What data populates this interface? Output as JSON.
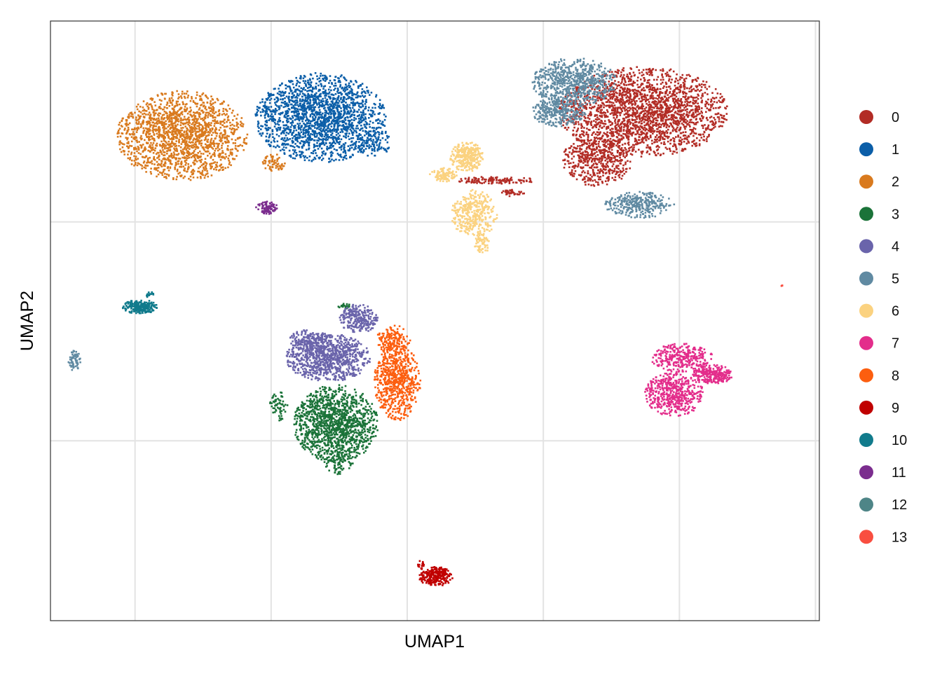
{
  "chart_data": {
    "type": "scatter",
    "title": "",
    "xlabel": "UMAP1",
    "ylabel": "UMAP2",
    "grid": true,
    "axis_tick_labels": false,
    "legend_position": "right",
    "xlim": [
      0,
      100
    ],
    "ylim": [
      0,
      100
    ],
    "x_gridlines": [
      11,
      28.7,
      46.4,
      64.1,
      81.8,
      99.5
    ],
    "y_gridlines": [
      30,
      66.5
    ],
    "clusters": [
      {
        "name": "0",
        "color": "#B22C25",
        "blobs": [
          [
            77,
            85,
            11,
            7.5,
            2200
          ],
          [
            71,
            77,
            4.5,
            4.5,
            500
          ],
          [
            58,
            73.6,
            5.5,
            0.6,
            120
          ],
          [
            60,
            71.5,
            1.5,
            0.6,
            40
          ]
        ]
      },
      {
        "name": "1",
        "color": "#0B5EA8",
        "blobs": [
          [
            35,
            84,
            8.5,
            7.5,
            1900
          ],
          [
            42,
            80,
            2.5,
            2.5,
            100
          ]
        ]
      },
      {
        "name": "2",
        "color": "#D97A1E",
        "blobs": [
          [
            17,
            81,
            8.5,
            7.5,
            1700
          ],
          [
            29,
            76.5,
            1.5,
            1.5,
            60
          ]
        ]
      },
      {
        "name": "3",
        "color": "#1B7339",
        "blobs": [
          [
            37,
            33,
            5.5,
            6.5,
            1300
          ],
          [
            29.5,
            36,
            1.2,
            2.5,
            60
          ],
          [
            37.5,
            26.5,
            2,
            2,
            80
          ],
          [
            38,
            52.5,
            1.2,
            0.5,
            20
          ]
        ]
      },
      {
        "name": "4",
        "color": "#6A64AB",
        "blobs": [
          [
            36,
            44,
            5.5,
            4,
            900
          ],
          [
            40,
            50.5,
            2.5,
            2.5,
            250
          ],
          [
            33.5,
            47,
            2.5,
            1.8,
            150
          ]
        ]
      },
      {
        "name": "5",
        "color": "#608AA2",
        "blobs": [
          [
            68,
            90,
            5.5,
            4,
            700
          ],
          [
            66,
            85,
            3.5,
            2.5,
            300
          ],
          [
            76.5,
            69.5,
            4.5,
            2.2,
            300
          ],
          [
            3,
            43.5,
            0.8,
            1.7,
            60
          ]
        ]
      },
      {
        "name": "6",
        "color": "#FBD280",
        "blobs": [
          [
            55,
            68,
            3,
            4,
            350
          ],
          [
            54,
            77.5,
            2.2,
            2.5,
            300
          ],
          [
            51,
            74.5,
            1.8,
            1.2,
            100
          ],
          [
            56,
            63,
            1,
            1.8,
            60
          ]
        ]
      },
      {
        "name": "7",
        "color": "#E32D8B",
        "blobs": [
          [
            81,
            38,
            3.8,
            3.8,
            500
          ],
          [
            82,
            44,
            4,
            2.5,
            300
          ],
          [
            86,
            41.2,
            2.6,
            1.6,
            250
          ]
        ]
      },
      {
        "name": "8",
        "color": "#FC5E0F",
        "blobs": [
          [
            45,
            40,
            3,
            6.5,
            650
          ],
          [
            44.5,
            47,
            2.2,
            2.5,
            150
          ]
        ]
      },
      {
        "name": "9",
        "color": "#C00000",
        "blobs": [
          [
            50,
            7.5,
            2.2,
            1.6,
            250
          ],
          [
            48,
            9.5,
            0.5,
            0.8,
            15
          ]
        ]
      },
      {
        "name": "10",
        "color": "#117B8C",
        "blobs": [
          [
            11.5,
            52.5,
            2.3,
            1.2,
            220
          ],
          [
            12.8,
            54.5,
            0.7,
            0.5,
            20
          ]
        ]
      },
      {
        "name": "11",
        "color": "#7B2D8E",
        "blobs": [
          [
            28,
            69,
            1.4,
            1.1,
            90
          ]
        ]
      },
      {
        "name": "12",
        "color": "#4E8587",
        "blobs": []
      },
      {
        "name": "13",
        "color": "#F94E40",
        "blobs": [
          [
            95,
            56,
            0.15,
            0.1,
            3
          ]
        ]
      }
    ]
  }
}
